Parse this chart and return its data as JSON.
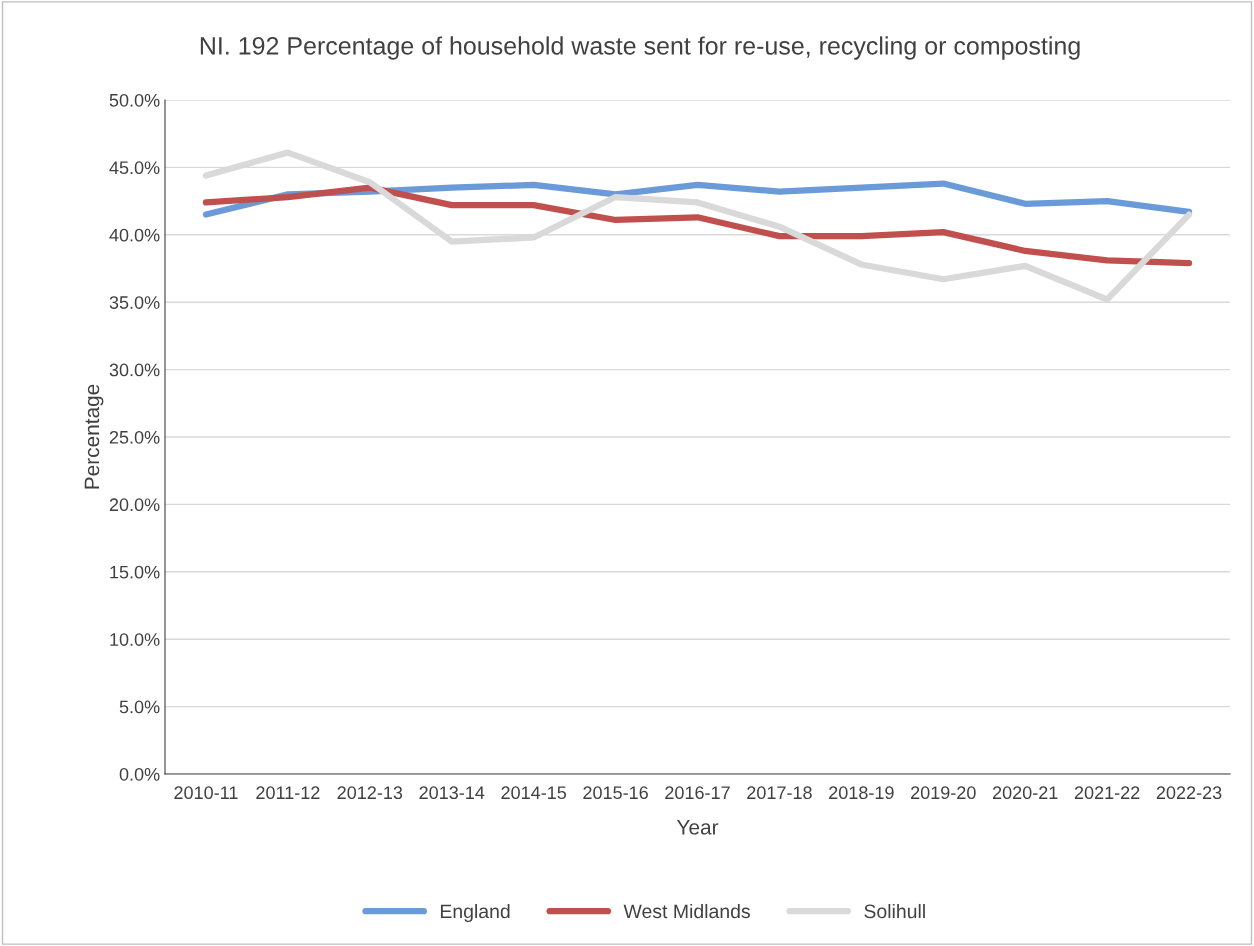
{
  "chart_data": {
    "type": "line",
    "title": "NI. 192 Percentage of household waste sent for re-use, recycling or composting",
    "xlabel": "Year",
    "ylabel": "Percentage",
    "categories": [
      "2010-11",
      "2011-12",
      "2012-13",
      "2013-14",
      "2014-15",
      "2015-16",
      "2016-17",
      "2017-18",
      "2018-19",
      "2019-20",
      "2020-21",
      "2021-22",
      "2022-23"
    ],
    "series": [
      {
        "name": "England",
        "color": "#6a9bd8",
        "values": [
          41.5,
          43.0,
          43.2,
          43.5,
          43.7,
          43.0,
          43.7,
          43.2,
          43.5,
          43.8,
          42.3,
          42.5,
          41.7
        ]
      },
      {
        "name": "West Midlands",
        "color": "#c0504d",
        "values": [
          42.4,
          42.8,
          43.5,
          42.2,
          42.2,
          41.1,
          41.3,
          39.9,
          39.9,
          40.2,
          38.8,
          38.1,
          37.9
        ]
      },
      {
        "name": "Solihull",
        "color": "#d9d9d9",
        "values": [
          44.4,
          46.1,
          43.9,
          39.5,
          39.8,
          42.8,
          42.4,
          40.6,
          37.8,
          36.7,
          37.7,
          35.2,
          41.5
        ]
      }
    ],
    "ylim": [
      0,
      50
    ],
    "yticks": [
      {
        "value": 0,
        "label": "0.0%"
      },
      {
        "value": 5,
        "label": "5.0%"
      },
      {
        "value": 10,
        "label": "10.0%"
      },
      {
        "value": 15,
        "label": "15.0%"
      },
      {
        "value": 20,
        "label": "20.0%"
      },
      {
        "value": 25,
        "label": "25.0%"
      },
      {
        "value": 30,
        "label": "30.0%"
      },
      {
        "value": 35,
        "label": "35.0%"
      },
      {
        "value": 40,
        "label": "40.0%"
      },
      {
        "value": 45,
        "label": "45.0%"
      },
      {
        "value": 50,
        "label": "50.0%"
      }
    ],
    "grid": "y",
    "legend": "bottom",
    "line_style": "solid",
    "marker": "none"
  }
}
